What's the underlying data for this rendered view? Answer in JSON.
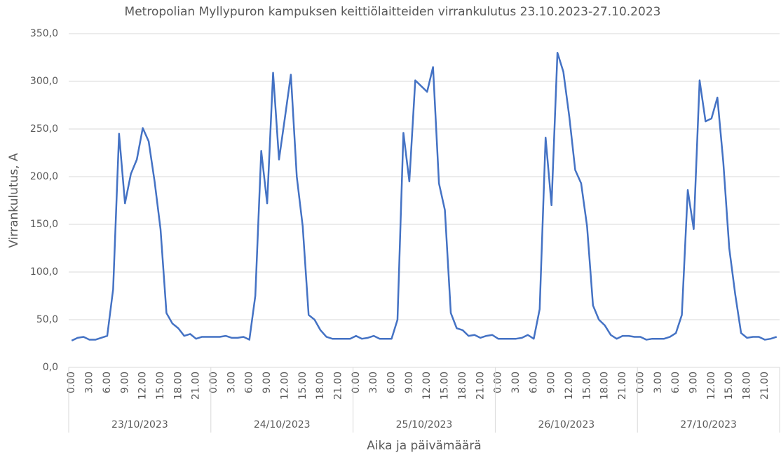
{
  "chart_data": {
    "type": "line",
    "title": "Metropolian Myllypuron kampuksen keittiölaitteiden virrankulutus 23.10.2023-27.10.2023",
    "y_label": "Virrankulutus, A",
    "x_label": "Aika ja päivämäärä",
    "categories": [
      "0.00",
      null,
      null,
      "3.00",
      null,
      null,
      "6.00",
      null,
      null,
      "9.00",
      null,
      null,
      "12.00",
      null,
      null,
      "15.00",
      null,
      null,
      "18.00",
      null,
      null,
      "21.00",
      null,
      null,
      "0.00",
      null,
      null,
      "3.00",
      null,
      null,
      "6.00",
      null,
      null,
      "9.00",
      null,
      null,
      "12.00",
      null,
      null,
      "15.00",
      null,
      null,
      "18.00",
      null,
      null,
      "21.00",
      null,
      null,
      "0.00",
      null,
      null,
      "3.00",
      null,
      null,
      "6.00",
      null,
      null,
      "9.00",
      null,
      null,
      "12.00",
      null,
      null,
      "15.00",
      null,
      null,
      "18.00",
      null,
      null,
      "21.00",
      null,
      null,
      "0.00",
      null,
      null,
      "3.00",
      null,
      null,
      "6.00",
      null,
      null,
      "9.00",
      null,
      null,
      "12.00",
      null,
      null,
      "15.00",
      null,
      null,
      "18.00",
      null,
      null,
      "21.00",
      null,
      null,
      "0.00",
      null,
      null,
      "3.00",
      null,
      null,
      "6.00",
      null,
      null,
      "9.00",
      null,
      null,
      "12.00",
      null,
      null,
      "15.00",
      null,
      null,
      "18.00",
      null,
      null,
      "21.00",
      null,
      null
    ],
    "groups": [
      "23/10/2023",
      "24/10/2023",
      "25/10/2023",
      "26/10/2023",
      "27/10/2023"
    ],
    "series": [
      {
        "color": "#4472c4",
        "values": [
          28,
          31,
          32,
          29,
          29,
          31,
          33,
          82,
          245,
          172,
          203,
          218,
          251,
          237,
          195,
          145,
          57,
          46,
          41,
          33,
          35,
          30,
          32,
          32,
          32,
          32,
          33,
          31,
          31,
          32,
          29,
          75,
          227,
          172,
          309,
          218,
          262,
          307,
          200,
          148,
          55,
          50,
          39,
          32,
          30,
          30,
          30,
          30,
          33,
          30,
          31,
          33,
          30,
          30,
          30,
          50,
          246,
          195,
          301,
          295,
          289,
          315,
          193,
          165,
          57,
          41,
          39,
          33,
          34,
          31,
          33,
          34,
          30,
          30,
          30,
          30,
          31,
          34,
          30,
          61,
          241,
          170,
          330,
          310,
          263,
          207,
          193,
          148,
          65,
          50,
          44,
          34,
          30,
          33,
          33,
          32,
          32,
          29,
          30,
          30,
          30,
          32,
          36,
          55,
          186,
          145,
          301,
          258,
          261,
          283,
          215,
          125,
          77,
          36,
          31,
          32,
          32,
          29,
          30,
          32
        ]
      }
    ],
    "ylim": [
      0,
      350
    ],
    "yticks": [
      {
        "value": 0,
        "label": "0,0"
      },
      {
        "value": 50,
        "label": "50,0"
      },
      {
        "value": 100,
        "label": "100,0"
      },
      {
        "value": 150,
        "label": "150,0"
      },
      {
        "value": 200,
        "label": "200,0"
      },
      {
        "value": 250,
        "label": "250,0"
      },
      {
        "value": 300,
        "label": "300,0"
      },
      {
        "value": 350,
        "label": "350,0"
      }
    ],
    "grid": true
  }
}
